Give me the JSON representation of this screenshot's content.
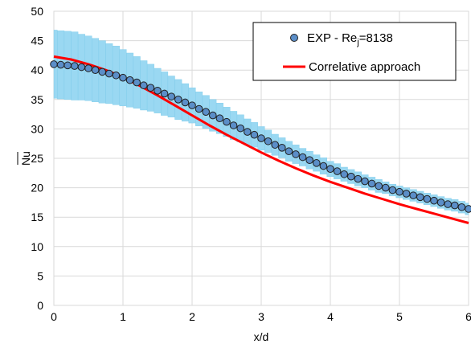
{
  "chart_data": {
    "type": "scatter",
    "xlabel": "x/d",
    "ylabel": "Nu",
    "xlim": [
      0,
      6
    ],
    "ylim": [
      0,
      50
    ],
    "x_ticks": [
      0,
      1,
      2,
      3,
      4,
      5,
      6
    ],
    "y_ticks": [
      0,
      5,
      10,
      15,
      20,
      25,
      30,
      35,
      40,
      45,
      50
    ],
    "grid": true,
    "legend_position": "top-right",
    "series": [
      {
        "name": "EXP - Rej=8138",
        "name_main": "EXP - Re",
        "name_sub": "j",
        "name_tail": "=8138",
        "kind": "markers",
        "marker_color": "#5b8ec8",
        "error_band_color": "#9ad8f2",
        "error_band_halfwidth": [
          5.8,
          5.8,
          5.8,
          5.8,
          5.6,
          5.5,
          5.4,
          5.3,
          5.1,
          5.0,
          4.8,
          4.6,
          4.4,
          4.2,
          4.0,
          3.8,
          3.7,
          3.5,
          3.4,
          3.2,
          3.0,
          2.9,
          2.8,
          2.7,
          2.6,
          2.5,
          2.4,
          2.3,
          2.2,
          2.1,
          2.0,
          1.9,
          1.8,
          1.7,
          1.7,
          1.6,
          1.5,
          1.5,
          1.4,
          1.4,
          1.3,
          1.3,
          1.2,
          1.2,
          1.2,
          1.1,
          1.1,
          1.1,
          1.0,
          1.0,
          1.0,
          1.0,
          1.0,
          1.0,
          1.0,
          1.0,
          1.0,
          1.0,
          1.0,
          1.0,
          1.0
        ],
        "x": [
          0.0,
          0.1,
          0.2,
          0.3,
          0.4,
          0.5,
          0.6,
          0.7,
          0.8,
          0.9,
          1.0,
          1.1,
          1.2,
          1.3,
          1.4,
          1.5,
          1.6,
          1.7,
          1.8,
          1.9,
          2.0,
          2.1,
          2.2,
          2.3,
          2.4,
          2.5,
          2.6,
          2.7,
          2.8,
          2.9,
          3.0,
          3.1,
          3.2,
          3.3,
          3.4,
          3.5,
          3.6,
          3.7,
          3.8,
          3.9,
          4.0,
          4.1,
          4.2,
          4.3,
          4.4,
          4.5,
          4.6,
          4.7,
          4.8,
          4.9,
          5.0,
          5.1,
          5.2,
          5.3,
          5.4,
          5.5,
          5.6,
          5.7,
          5.8,
          5.9,
          6.0
        ],
        "values": [
          41.0,
          40.9,
          40.8,
          40.7,
          40.5,
          40.3,
          40.0,
          39.7,
          39.4,
          39.1,
          38.7,
          38.3,
          37.9,
          37.4,
          37.0,
          36.5,
          36.0,
          35.5,
          35.0,
          34.5,
          34.0,
          33.4,
          32.9,
          32.3,
          31.8,
          31.2,
          30.6,
          30.1,
          29.5,
          29.0,
          28.4,
          27.9,
          27.3,
          26.8,
          26.2,
          25.7,
          25.2,
          24.7,
          24.2,
          23.7,
          23.2,
          22.8,
          22.3,
          21.9,
          21.5,
          21.1,
          20.7,
          20.3,
          20.0,
          19.6,
          19.3,
          19.0,
          18.7,
          18.4,
          18.1,
          17.8,
          17.5,
          17.2,
          17.0,
          16.7,
          16.4
        ]
      },
      {
        "name": "Correlative approach",
        "kind": "line",
        "color": "#ff0000",
        "x": [
          0.0,
          0.25,
          0.5,
          0.75,
          1.0,
          1.25,
          1.5,
          1.75,
          2.0,
          2.25,
          2.5,
          2.75,
          3.0,
          3.25,
          3.5,
          3.75,
          4.0,
          4.25,
          4.5,
          4.75,
          5.0,
          5.25,
          5.5,
          5.75,
          6.0
        ],
        "values": [
          42.3,
          41.8,
          41.0,
          40.0,
          38.8,
          37.3,
          35.7,
          34.0,
          32.3,
          30.6,
          29.0,
          27.5,
          26.0,
          24.6,
          23.3,
          22.1,
          21.0,
          20.0,
          19.0,
          18.1,
          17.2,
          16.4,
          15.6,
          14.8,
          14.0
        ]
      }
    ]
  }
}
